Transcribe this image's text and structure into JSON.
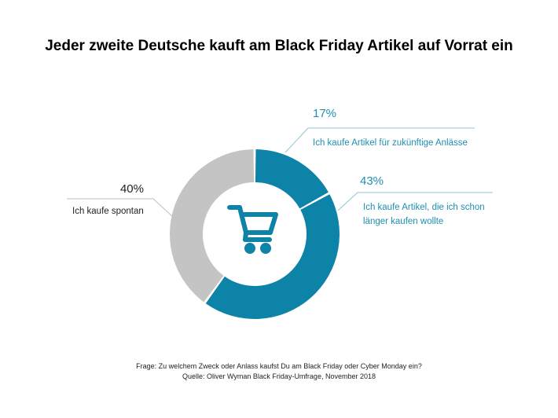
{
  "chart_data": {
    "type": "pie",
    "title": "Jeder zweite Deutsche kauft am Black Friday Artikel auf Vorrat ein",
    "slices": [
      {
        "label": "Ich kaufe Artikel für zukünftige Anlässe",
        "value": 17,
        "value_label": "17%",
        "color": "#0e83a8"
      },
      {
        "label_lines": [
          "Ich kaufe Artikel, die ich schon",
          "länger kaufen wollte"
        ],
        "value": 43,
        "value_label": "43%",
        "color": "#0e83a8"
      },
      {
        "label": "Ich kaufe spontan",
        "value": 40,
        "value_label": "40%",
        "color": "#c4c4c4"
      }
    ],
    "center_icon": "shopping-cart-icon",
    "footnote": {
      "question": "Frage: Zu welchem Zweck oder Anlass kaufst Du am Black Friday oder Cyber Monday ein?",
      "source": "Quelle: Oliver Wyman Black Friday-Umfrage, November 2018"
    },
    "colors": {
      "accent": "#0e83a8",
      "accent_text": "#1f8fb0",
      "gray": "#c4c4c4",
      "leader": "#bfbfbf"
    }
  }
}
